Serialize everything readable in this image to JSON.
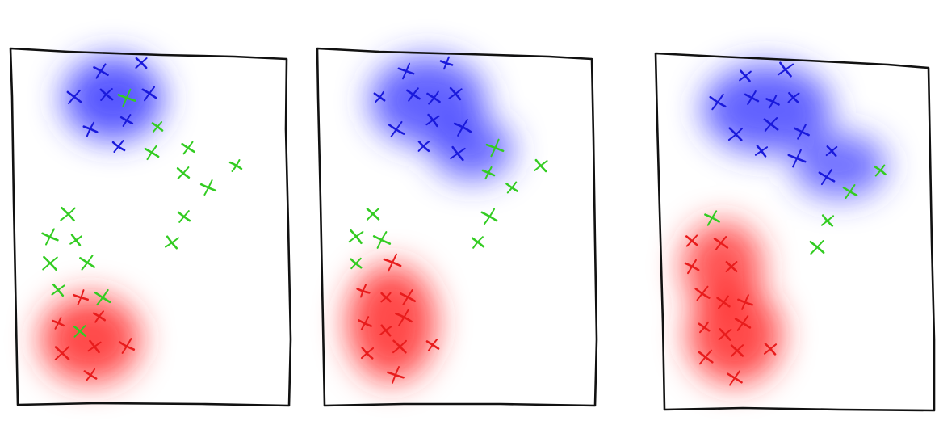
{
  "colors": {
    "blue": "#1a1adb",
    "red": "#e81c1c",
    "green": "#33cc22",
    "frame": "#111111",
    "blue_cloud": "#3b3bff",
    "red_cloud": "#ff2a2a"
  },
  "panels": [
    {
      "id": "panel-1",
      "blue_marks": [
        [
          125,
          88
        ],
        [
          175,
          78
        ],
        [
          92,
          120
        ],
        [
          132,
          117
        ],
        [
          185,
          116
        ],
        [
          112,
          160
        ],
        [
          157,
          149
        ],
        [
          147,
          181
        ]
      ],
      "red_marks": [
        [
          100,
          368
        ],
        [
          72,
          400
        ],
        [
          123,
          392
        ],
        [
          117,
          429
        ],
        [
          77,
          437
        ],
        [
          157,
          428
        ],
        [
          112,
          464
        ]
      ],
      "green_marks": [
        [
          157,
          121
        ],
        [
          195,
          157
        ],
        [
          188,
          189
        ],
        [
          233,
          183
        ],
        [
          227,
          214
        ],
        [
          258,
          232
        ],
        [
          292,
          205
        ],
        [
          228,
          268
        ],
        [
          213,
          300
        ],
        [
          84,
          265
        ],
        [
          62,
          293
        ],
        [
          94,
          297
        ],
        [
          62,
          326
        ],
        [
          108,
          325
        ],
        [
          72,
          359
        ],
        [
          127,
          368
        ],
        [
          99,
          410
        ]
      ]
    },
    {
      "id": "panel-2",
      "blue_marks": [
        [
          503,
          88
        ],
        [
          553,
          78
        ],
        [
          470,
          120
        ],
        [
          512,
          117
        ],
        [
          537,
          121
        ],
        [
          564,
          116
        ],
        [
          491,
          160
        ],
        [
          536,
          149
        ],
        [
          573,
          158
        ],
        [
          525,
          181
        ],
        [
          567,
          190
        ]
      ],
      "red_marks": [
        [
          486,
          325
        ],
        [
          450,
          360
        ],
        [
          478,
          368
        ],
        [
          505,
          368
        ],
        [
          452,
          400
        ],
        [
          478,
          409
        ],
        [
          500,
          393
        ],
        [
          536,
          427
        ],
        [
          455,
          437
        ],
        [
          495,
          429
        ],
        [
          490,
          464
        ]
      ],
      "green_marks": [
        [
          613,
          183
        ],
        [
          605,
          214
        ],
        [
          634,
          232
        ],
        [
          670,
          205
        ],
        [
          606,
          268
        ],
        [
          592,
          300
        ],
        [
          462,
          265
        ],
        [
          441,
          293
        ],
        [
          473,
          297
        ],
        [
          441,
          326
        ]
      ]
    },
    {
      "id": "panel-3",
      "blue_marks": [
        [
          923,
          94
        ],
        [
          973,
          86
        ],
        [
          889,
          126
        ],
        [
          931,
          121
        ],
        [
          957,
          126
        ],
        [
          983,
          121
        ],
        [
          911,
          166
        ],
        [
          955,
          154
        ],
        [
          993,
          163
        ],
        [
          943,
          187
        ],
        [
          987,
          196
        ],
        [
          1030,
          187
        ],
        [
          1024,
          219
        ]
      ],
      "red_marks": [
        [
          857,
          298
        ],
        [
          893,
          301
        ],
        [
          857,
          330
        ],
        [
          906,
          330
        ],
        [
          870,
          363
        ],
        [
          896,
          374
        ],
        [
          923,
          374
        ],
        [
          872,
          405
        ],
        [
          898,
          414
        ],
        [
          920,
          400
        ],
        [
          954,
          432
        ],
        [
          874,
          442
        ],
        [
          913,
          434
        ],
        [
          910,
          468
        ]
      ],
      "green_marks": [
        [
          1090,
          211
        ],
        [
          1053,
          237
        ],
        [
          1025,
          273
        ],
        [
          1012,
          306
        ],
        [
          882,
          270
        ]
      ]
    }
  ]
}
